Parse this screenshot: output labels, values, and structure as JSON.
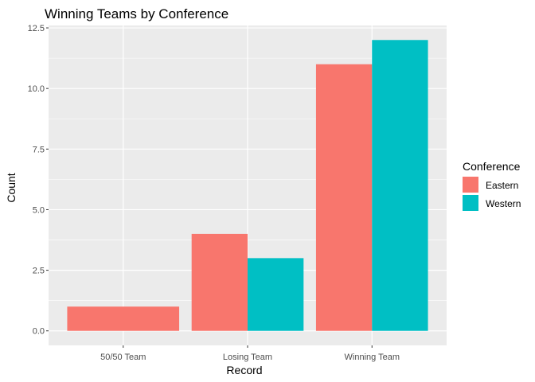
{
  "chart_data": {
    "type": "bar",
    "title": "Winning Teams by Conference",
    "xlabel": "Record",
    "ylabel": "Count",
    "categories": [
      "50/50 Team",
      "Losing Team",
      "Winning Team"
    ],
    "series": [
      {
        "name": "Eastern",
        "color": "#F8766D",
        "values": [
          1,
          4,
          11
        ]
      },
      {
        "name": "Western",
        "color": "#00BFC4",
        "values": [
          0,
          3,
          12
        ]
      }
    ],
    "yticks": [
      0,
      2.5,
      5,
      7.5,
      10,
      12.5
    ],
    "ytick_labels": [
      "0.0",
      "2.5",
      "5.0",
      "7.5",
      "10.0",
      "12.5"
    ],
    "ylim": [
      -0.6,
      12.6
    ],
    "legend": {
      "title": "Conference",
      "position": "right"
    },
    "grid": true,
    "background": "#EBEBEB",
    "dodge": "preserve-total"
  }
}
